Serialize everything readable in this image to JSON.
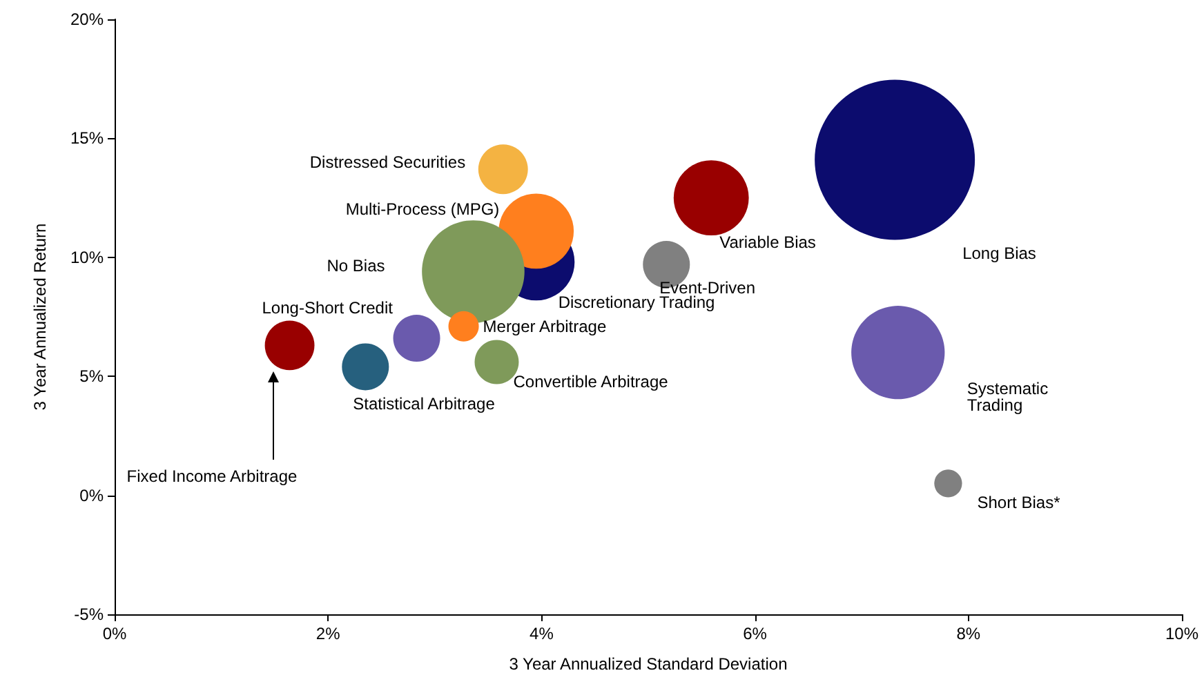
{
  "chart_data": {
    "type": "bubble",
    "xlabel": "3 Year Annualized Standard Deviation",
    "ylabel": "3 Year Annualized Return",
    "xlim": [
      0,
      10
    ],
    "xticks": [
      {
        "value": 0,
        "label": "0%"
      },
      {
        "value": 2,
        "label": "2%"
      },
      {
        "value": 4,
        "label": "4%"
      },
      {
        "value": 6,
        "label": "6%"
      },
      {
        "value": 8,
        "label": "8%"
      },
      {
        "value": 10,
        "label": "10%"
      }
    ],
    "ylim": [
      -5,
      20
    ],
    "yticks": [
      {
        "value": -5,
        "label": "-5%"
      },
      {
        "value": 0,
        "label": "0%"
      },
      {
        "value": 5,
        "label": "5%"
      },
      {
        "value": 10,
        "label": "10%"
      },
      {
        "value": 15,
        "label": "15%"
      },
      {
        "value": 20,
        "label": "20%"
      }
    ],
    "grid": false,
    "legend": false,
    "series": [
      {
        "name": "Long Bias",
        "color": "#0c0c6e",
        "x": [
          7.31
        ],
        "values": [
          14.1
        ],
        "sizes": [
          1
        ]
      },
      {
        "name": "Systematic Trading",
        "color": "#6a5aad",
        "x": [
          7.34
        ],
        "values": [
          6.0
        ],
        "sizes": [
          0.34
        ]
      },
      {
        "name": "Short Bias*",
        "color": "#808080",
        "x": [
          7.81
        ],
        "values": [
          0.5
        ],
        "sizes": [
          0.03
        ]
      },
      {
        "name": "Variable Bias",
        "color": "#990000",
        "x": [
          5.59
        ],
        "values": [
          12.5
        ],
        "sizes": [
          0.22
        ]
      },
      {
        "name": "Event-Driven",
        "color": "#808080",
        "x": [
          5.17
        ],
        "values": [
          9.7
        ],
        "sizes": [
          0.086
        ]
      },
      {
        "name": "Distressed Securities",
        "color": "#f4b342",
        "x": [
          3.64
        ],
        "values": [
          13.7
        ],
        "sizes": [
          0.096
        ]
      },
      {
        "name": "Discretionary Trading",
        "color": "#0c0c6e",
        "x": [
          3.95
        ],
        "values": [
          9.8
        ],
        "sizes": [
          0.23
        ]
      },
      {
        "name": "Multi-Process (MPG)",
        "color": "#ff7f1e",
        "x": [
          3.95
        ],
        "values": [
          11.1
        ],
        "sizes": [
          0.22
        ]
      },
      {
        "name": "No Bias",
        "color": "#7f9a5a",
        "x": [
          3.36
        ],
        "values": [
          9.4
        ],
        "sizes": [
          0.41
        ]
      },
      {
        "name": "Merger Arbitrage",
        "color": "#ff7f1e",
        "x": [
          3.27
        ],
        "values": [
          7.1
        ],
        "sizes": [
          0.036
        ]
      },
      {
        "name": "Convertible Arbitrage",
        "color": "#7f9a5a",
        "x": [
          3.58
        ],
        "values": [
          5.6
        ],
        "sizes": [
          0.076
        ]
      },
      {
        "name": "Long-Short Credit",
        "color": "#6a5aad",
        "x": [
          2.83
        ],
        "values": [
          6.6
        ],
        "sizes": [
          0.086
        ]
      },
      {
        "name": "Statistical Arbitrage",
        "color": "#26607e",
        "x": [
          2.35
        ],
        "values": [
          5.4
        ],
        "sizes": [
          0.086
        ]
      },
      {
        "name": "Fixed Income Arbitrage",
        "color": "#990000",
        "x": [
          1.64
        ],
        "values": [
          6.3
        ],
        "sizes": [
          0.096
        ]
      }
    ]
  }
}
